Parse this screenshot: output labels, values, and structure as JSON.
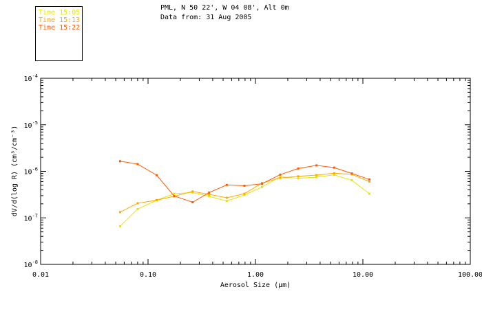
{
  "header": {
    "title": "PML, N 50 22', W 04 08', Alt 0m",
    "source": "Data from: 31 Aug 2005"
  },
  "chart_data": {
    "type": "line",
    "xlabel": "Aerosol Size (µm)",
    "ylabel": "dV/d(log R) (cm³/cm⁻³)",
    "xscale": "log",
    "yscale": "log",
    "xlim": [
      0.01,
      100
    ],
    "ylim": [
      1e-08,
      0.0001
    ],
    "x_ticks": [
      {
        "value": 0.01,
        "label": "0.01"
      },
      {
        "value": 0.1,
        "label": "0.10"
      },
      {
        "value": 1,
        "label": "1.00"
      },
      {
        "value": 10,
        "label": "10.00"
      },
      {
        "value": 100,
        "label": "100.00"
      }
    ],
    "y_ticks": [
      {
        "value": 1e-08,
        "base": "10",
        "exp": "-8"
      },
      {
        "value": 1e-07,
        "base": "10",
        "exp": "-7"
      },
      {
        "value": 1e-06,
        "base": "10",
        "exp": "-6"
      },
      {
        "value": 1e-05,
        "base": "10",
        "exp": "-5"
      },
      {
        "value": 0.0001,
        "base": "10",
        "exp": "-4"
      }
    ],
    "legend_position": "top-left",
    "x": [
      0.055,
      0.08,
      0.12,
      0.175,
      0.26,
      0.37,
      0.54,
      0.79,
      1.15,
      1.7,
      2.5,
      3.7,
      5.4,
      7.9,
      11.5
    ],
    "series": [
      {
        "name": "Time 15:05",
        "color": "#e6e600",
        "values": [
          6.6e-08,
          1.55e-07,
          2.4e-07,
          3.3e-07,
          3.5e-07,
          2.9e-07,
          2.3e-07,
          3.1e-07,
          4.6e-07,
          7.7e-07,
          7.1e-07,
          7.5e-07,
          8.4e-07,
          6.4e-07,
          3.3e-07
        ]
      },
      {
        "name": "Time 15:13",
        "color": "#ffaa00",
        "values": [
          1.33e-07,
          2.06e-07,
          2.4e-07,
          2.9e-07,
          3.7e-07,
          3.2e-07,
          2.7e-07,
          3.3e-07,
          5.6e-07,
          7.2e-07,
          7.8e-07,
          8.3e-07,
          9.1e-07,
          8.6e-07,
          6e-07
        ]
      },
      {
        "name": "Time 15:22",
        "color": "#ff5a00",
        "values": [
          1.65e-06,
          1.43e-06,
          8.3e-07,
          2.95e-07,
          2.17e-07,
          3.5e-07,
          5.1e-07,
          4.9e-07,
          5.4e-07,
          8.5e-07,
          1.15e-06,
          1.34e-06,
          1.2e-06,
          9e-07,
          6.7e-07
        ]
      }
    ]
  }
}
